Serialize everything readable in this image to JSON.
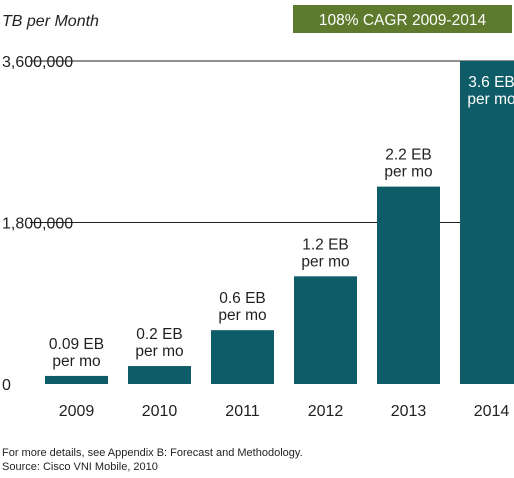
{
  "chart_data": {
    "type": "bar",
    "title": "",
    "ylabel": "TB per Month",
    "xlabel": "",
    "categories": [
      "2009",
      "2010",
      "2011",
      "2012",
      "2013",
      "2014"
    ],
    "values": [
      90000,
      200000,
      600000,
      1200000,
      2200000,
      3600000
    ],
    "value_labels": [
      [
        "0.09 EB",
        "per mo"
      ],
      [
        "0.2 EB",
        "per mo"
      ],
      [
        "0.6 EB",
        "per mo"
      ],
      [
        "1.2 EB",
        "per mo"
      ],
      [
        "2.2 EB",
        "per mo"
      ],
      [
        "3.6 EB",
        "per mo"
      ]
    ],
    "ylim": [
      0,
      3600000
    ],
    "y_ticks": [
      {
        "value": 0,
        "label": "0"
      },
      {
        "value": 1800000,
        "label": "1,800,000"
      },
      {
        "value": 3600000,
        "label": "3,600,000"
      }
    ],
    "grid": true,
    "bar_color": "#0e5c67",
    "highlight_label_color": "#ffffff",
    "annotation": {
      "text": "108% CAGR 2009-2014",
      "background": "#5e7a2c",
      "color": "#ffffff"
    }
  },
  "footnotes": [
    "For more details, see Appendix B: Forecast and Methodology.",
    "Source: Cisco VNI Mobile, 2010"
  ]
}
